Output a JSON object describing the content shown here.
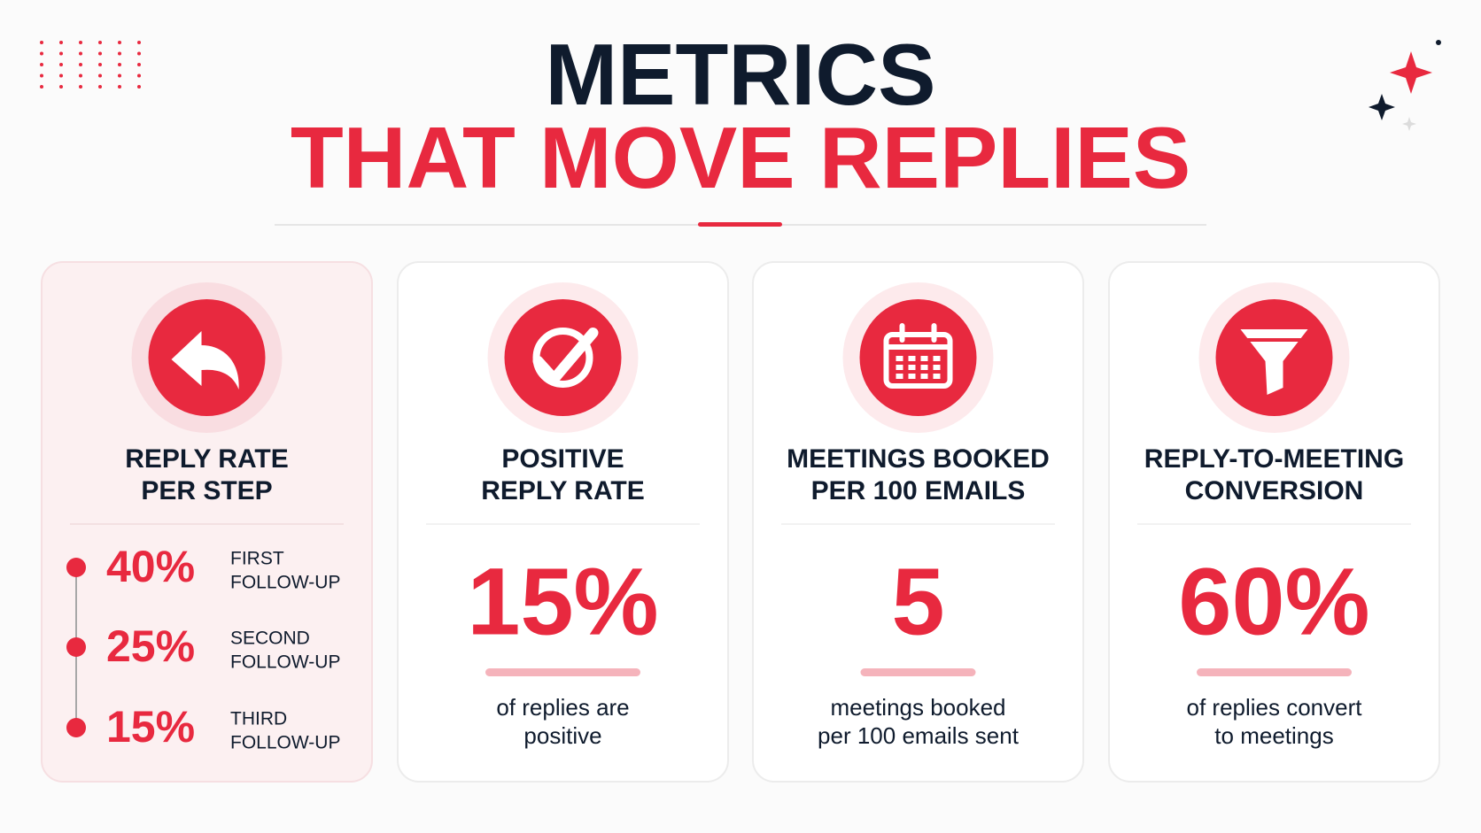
{
  "header": {
    "title": "METRICS",
    "subtitle": "THAT MOVE REPLIES"
  },
  "cards": [
    {
      "title_lines": [
        "REPLY RATE",
        "PER STEP"
      ],
      "steps": [
        {
          "value": "40%",
          "label_lines": [
            "FIRST",
            "FOLLOW-UP"
          ]
        },
        {
          "value": "25%",
          "label_lines": [
            "SECOND",
            "FOLLOW-UP"
          ]
        },
        {
          "value": "15%",
          "label_lines": [
            "THIRD",
            "FOLLOW-UP"
          ]
        }
      ]
    },
    {
      "title_lines": [
        "POSITIVE",
        "REPLY RATE"
      ],
      "value": "15%",
      "description_lines": [
        "of replies are",
        "positive"
      ]
    },
    {
      "title_lines": [
        "MEETINGS BOOKED",
        "PER 100 EMAILS"
      ],
      "value": "5",
      "description_lines": [
        "meetings booked",
        "per 100 emails sent"
      ]
    },
    {
      "title_lines": [
        "REPLY-TO-MEETING",
        "CONVERSION"
      ],
      "value": "60%",
      "description_lines": [
        "of replies convert",
        "to meetings"
      ]
    }
  ]
}
